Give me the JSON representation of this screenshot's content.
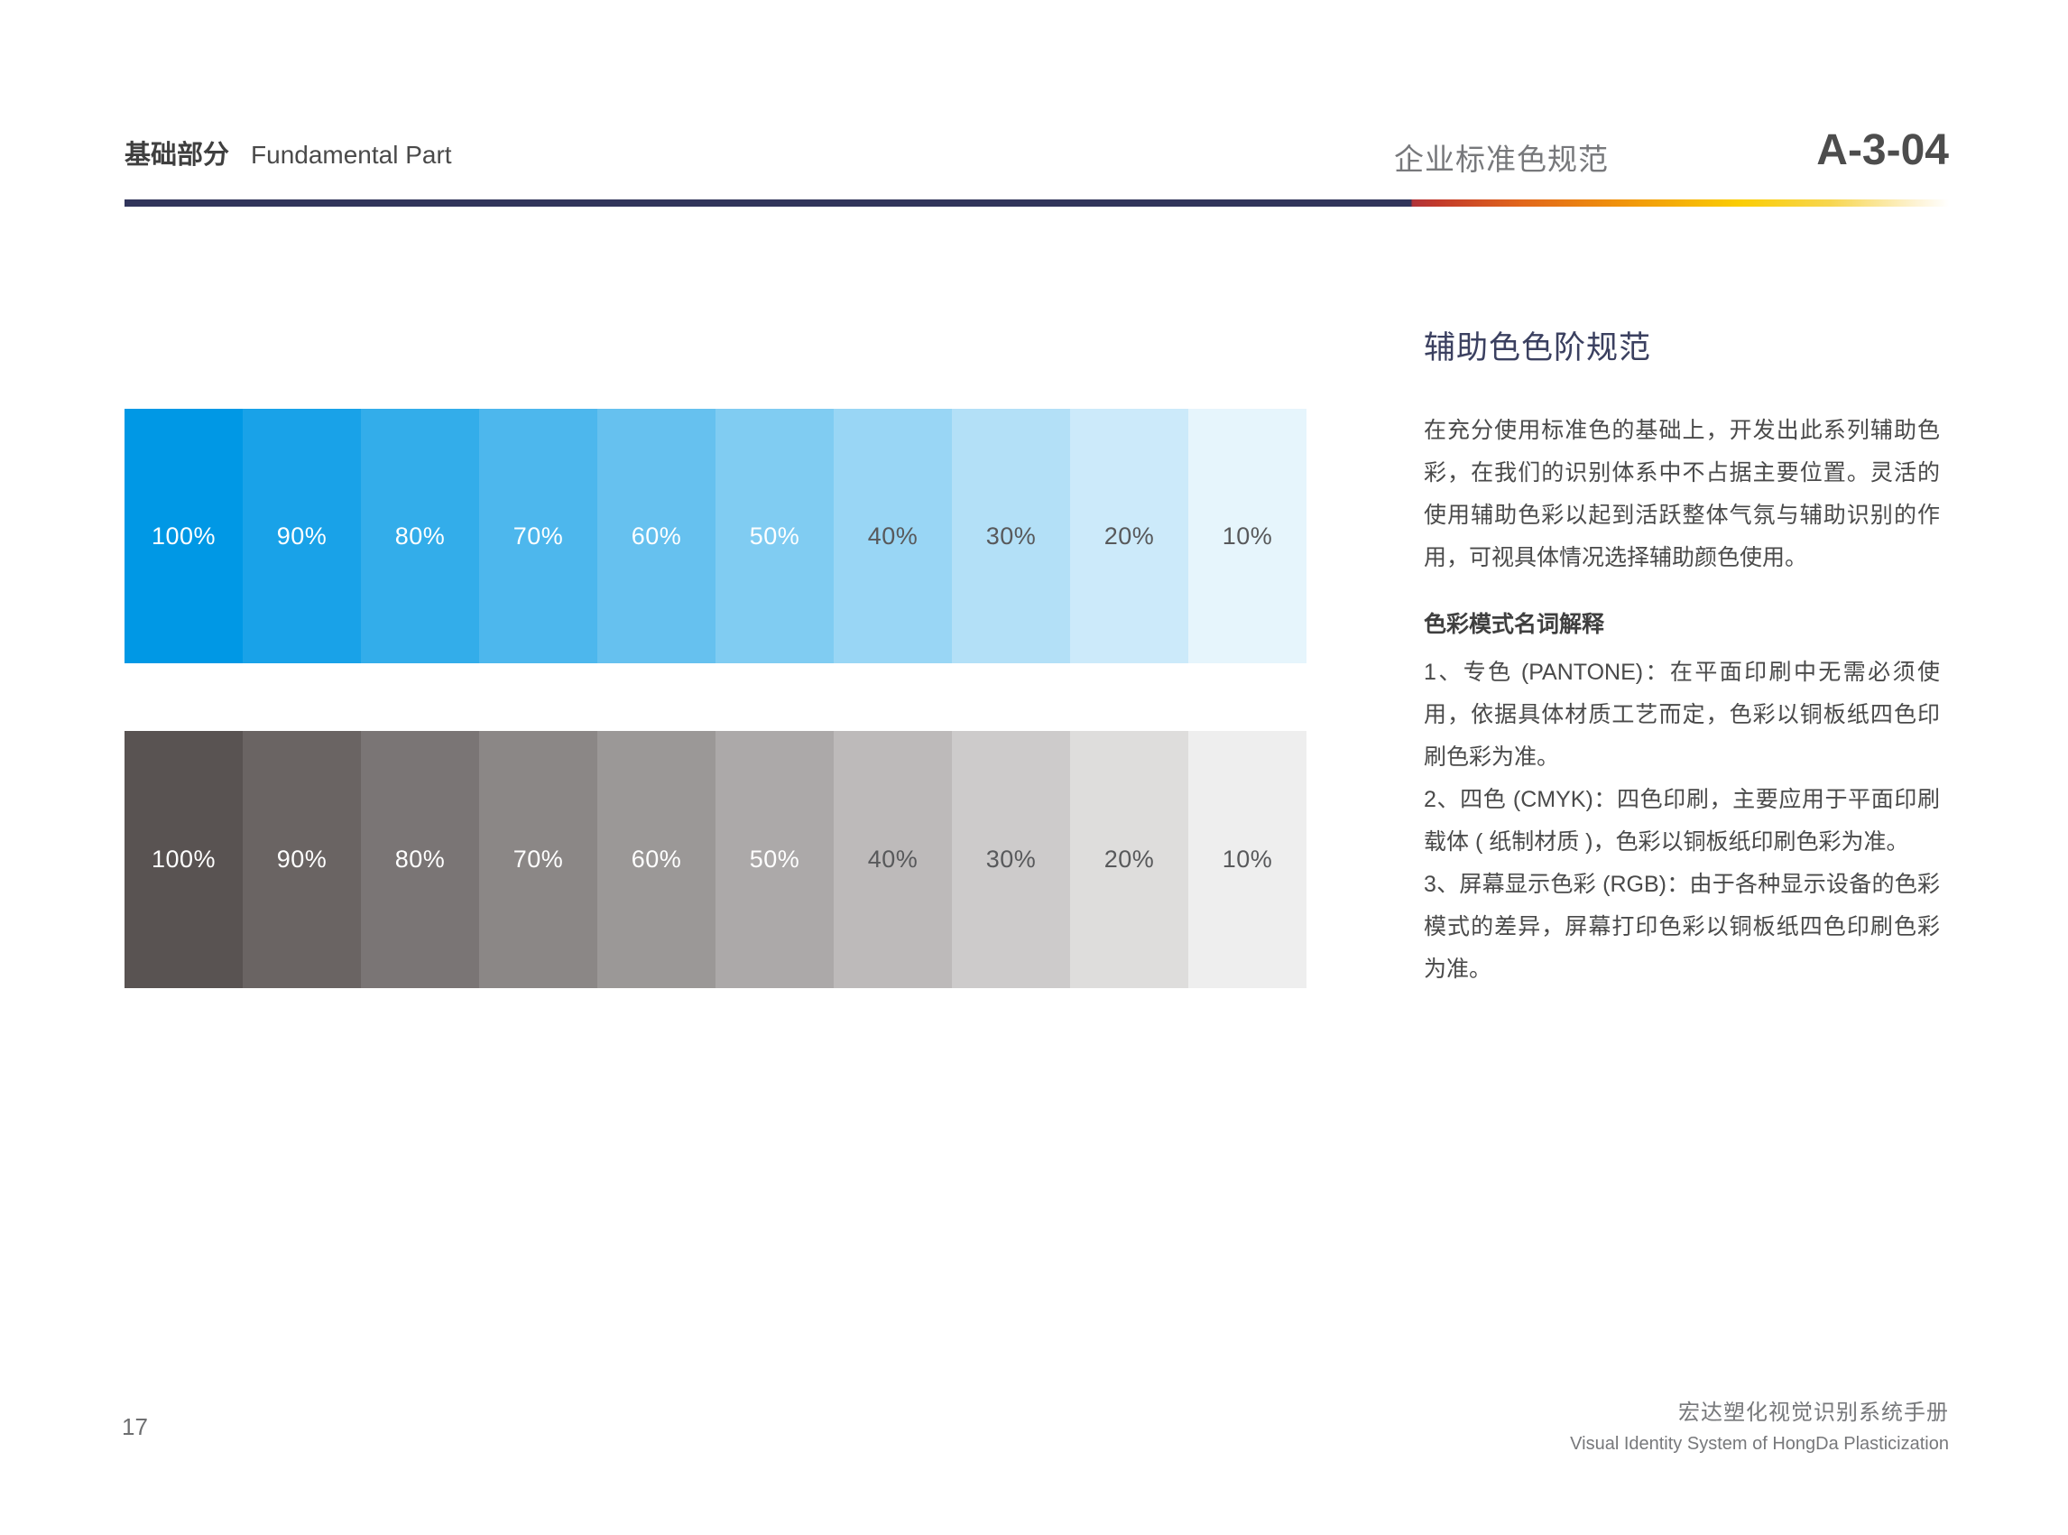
{
  "header": {
    "section_title_cn": "基础部分",
    "section_title_en": "Fundamental Part",
    "topic_title": "企业标准色规范",
    "page_code": "A-3-04",
    "rule_colors": {
      "navy": "#31355B",
      "red": "#C23A2B",
      "orange": "#F0930C",
      "yellow": "#FACD04"
    }
  },
  "tint_bars": [
    {
      "id": "auxiliary-blue",
      "base_color": "#0098E5",
      "label_light_color": "#FFFFFF",
      "label_dark_color": "#58595B",
      "light_label_min": 50,
      "steps": [
        "100%",
        "90%",
        "80%",
        "70%",
        "60%",
        "50%",
        "40%",
        "30%",
        "20%",
        "10%"
      ]
    },
    {
      "id": "auxiliary-gray",
      "base_color": "#595352",
      "label_light_color": "#FFFFFF",
      "label_dark_color": "#58595B",
      "light_label_min": 50,
      "steps": [
        "100%",
        "90%",
        "80%",
        "70%",
        "60%",
        "50%",
        "40%",
        "30%",
        "20%",
        "10%"
      ]
    }
  ],
  "content": {
    "title": "辅助色色阶规范",
    "intro": "在充分使用标准色的基础上，开发出此系列辅助色彩，在我们的识别体系中不占据主要位置。灵活的使用辅助色彩以起到活跃整体气氛与辅助识别的作用，可视具体情况选择辅助颜色使用。",
    "glossary_heading": "色彩模式名词解释",
    "glossary_items": [
      "1、专色 (PANTONE)：在平面印刷中无需必须使用，依据具体材质工艺而定，色彩以铜板纸四色印刷色彩为准。",
      "2、四色 (CMYK)：四色印刷，主要应用于平面印刷载体 ( 纸制材质 )，色彩以铜板纸印刷色彩为准。",
      "3、屏幕显示色彩 (RGB)：由于各种显示设备的色彩模式的差异，屏幕打印色彩以铜板纸四色印刷色彩为准。"
    ]
  },
  "footer": {
    "page_number": "17",
    "manual_title_cn": "宏达塑化视觉识别系统手册",
    "manual_title_en": "Visual Identity System of HongDa Plasticization"
  }
}
